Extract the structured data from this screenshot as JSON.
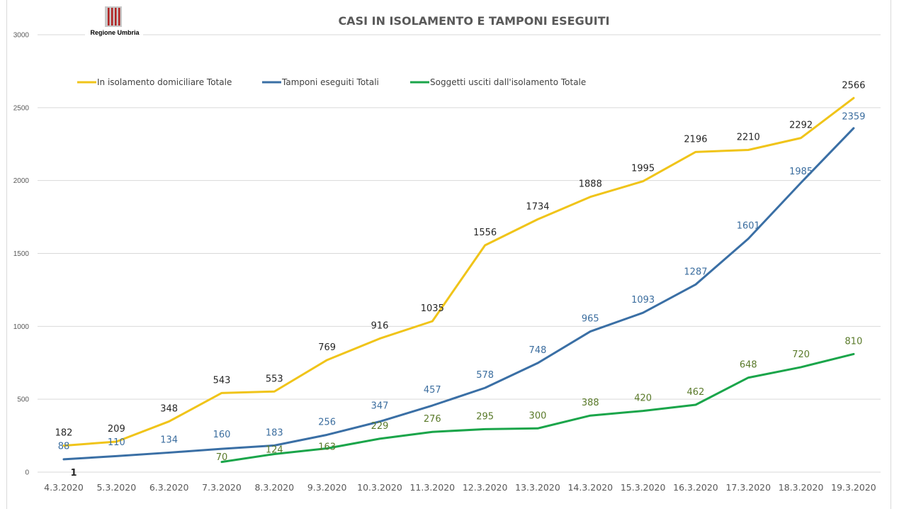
{
  "logo": {
    "text": "Regione Umbria",
    "color": "#b22222"
  },
  "chart_data": {
    "type": "line",
    "title": "CASI IN ISOLAMENTO E TAMPONI ESEGUITI",
    "xlabel": "",
    "ylabel": "",
    "ylim": [
      0,
      3000
    ],
    "yticks": [
      0,
      500,
      1000,
      1500,
      2000,
      2500,
      3000
    ],
    "grid": true,
    "legend_position": "top",
    "categories": [
      "4.3.2020",
      "5.3.2020",
      "6.3.2020",
      "7.3.2020",
      "8.3.2020",
      "9.3.2020",
      "10.3.2020",
      "11.3.2020",
      "12.3.2020",
      "13.3.2020",
      "14.3.2020",
      "15.3.2020",
      "16.3.2020",
      "17.3.2020",
      "18.3.2020",
      "19.3.2020"
    ],
    "series": [
      {
        "name": "In isolamento domiciliare Totale",
        "color": "#f0c419",
        "label_color": "#262626",
        "values": [
          182,
          209,
          348,
          543,
          553,
          769,
          916,
          1035,
          1556,
          1734,
          1888,
          1995,
          2196,
          2210,
          2292,
          2566
        ]
      },
      {
        "name": "Tamponi eseguiti Totali",
        "color": "#3a6fa5",
        "label_color": "#3c6e9f",
        "values": [
          88,
          110,
          134,
          160,
          183,
          256,
          347,
          457,
          578,
          748,
          965,
          1093,
          1287,
          1601,
          1985,
          2359
        ]
      },
      {
        "name": "Soggetti usciti dall'isolamento Totale",
        "color": "#1aa54a",
        "label_color": "#5a7a2a",
        "values": [
          null,
          null,
          null,
          70,
          124,
          163,
          229,
          276,
          295,
          300,
          388,
          420,
          462,
          648,
          720,
          810
        ]
      }
    ],
    "annotations": [
      {
        "text": "1",
        "category": "4.3.2020",
        "note": "bold label near zero axis"
      }
    ]
  }
}
